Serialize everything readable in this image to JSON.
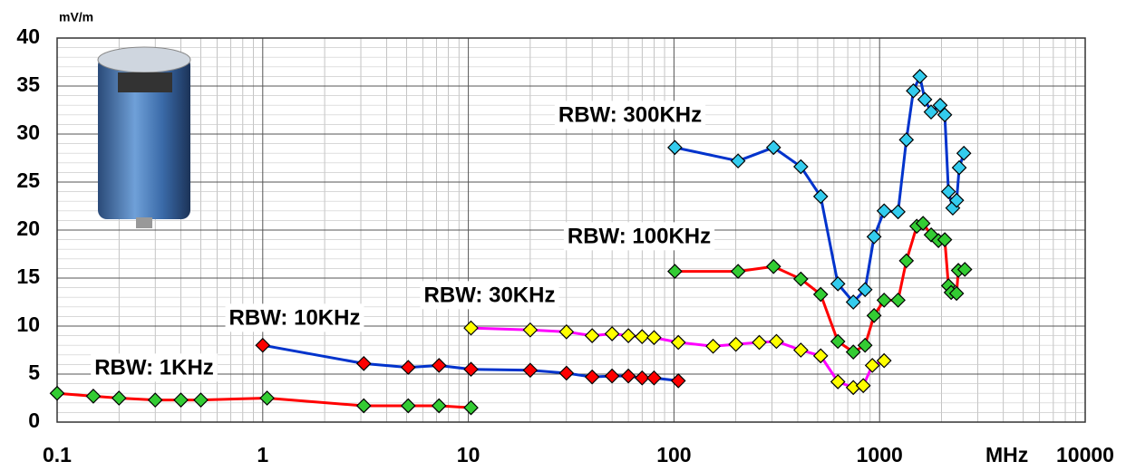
{
  "chart_data": {
    "type": "line",
    "y_unit": "mV/m",
    "x_unit": "MHz",
    "xscale": "log",
    "grid": true,
    "xlim": [
      0.1,
      10000
    ],
    "xticks": [
      0.1,
      1,
      10,
      100,
      1000,
      10000
    ],
    "ylim": [
      0,
      40
    ],
    "yticks": [
      0,
      5,
      10,
      15,
      20,
      25,
      30,
      35,
      40
    ],
    "series": [
      {
        "name": "RBW: 1KHz",
        "color": "#ff0000",
        "marker_color": "#33cc33",
        "x": [
          0.1,
          0.15,
          0.2,
          0.3,
          0.4,
          0.5,
          1.05,
          3.1,
          5.1,
          7.2,
          10.3
        ],
        "values": [
          3.0,
          2.7,
          2.5,
          2.3,
          2.3,
          2.3,
          2.5,
          1.7,
          1.7,
          1.7,
          1.5
        ]
      },
      {
        "name": "RBW: 10KHz",
        "color": "#0033cc",
        "marker_color": "#ff0000",
        "x": [
          1.0,
          3.1,
          5.1,
          7.2,
          10.3,
          20,
          30,
          40,
          50,
          60,
          70,
          80,
          105
        ],
        "values": [
          8.0,
          6.1,
          5.7,
          5.9,
          5.5,
          5.4,
          5.1,
          4.7,
          4.8,
          4.8,
          4.6,
          4.6,
          4.3
        ]
      },
      {
        "name": "RBW: 30KHz",
        "color": "#ff00ff",
        "marker_color": "#ffff00",
        "x": [
          10.3,
          20,
          30,
          40,
          50,
          60,
          70,
          80,
          105,
          155,
          200,
          260,
          315,
          414,
          517,
          627,
          745,
          833,
          922,
          1052
        ],
        "values": [
          9.8,
          9.6,
          9.4,
          9.0,
          9.2,
          9.0,
          8.9,
          8.8,
          8.3,
          7.9,
          8.1,
          8.3,
          8.4,
          7.5,
          6.9,
          4.2,
          3.6,
          3.8,
          5.9,
          6.4
        ]
      },
      {
        "name": "RBW: 100KHz",
        "color": "#ff0000",
        "marker_color": "#33cc33",
        "x": [
          101,
          205,
          305,
          414,
          517,
          627,
          745,
          850,
          940,
          1052,
          1230,
          1350,
          1517,
          1627,
          1782,
          1933,
          2075,
          2163,
          2229,
          2368,
          2416,
          2597
        ],
        "values": [
          15.7,
          15.7,
          16.2,
          14.9,
          13.3,
          8.4,
          7.3,
          8.0,
          11.1,
          12.7,
          12.7,
          16.8,
          20.4,
          20.7,
          19.5,
          18.9,
          19.0,
          14.2,
          13.5,
          13.4,
          15.8,
          15.9
        ]
      },
      {
        "name": "RBW: 300KHz",
        "color": "#0033cc",
        "marker_color": "#33ccee",
        "x": [
          101,
          205,
          305,
          414,
          517,
          627,
          745,
          850,
          940,
          1052,
          1230,
          1350,
          1460,
          1570,
          1660,
          1780,
          1970,
          2075,
          2163,
          2270,
          2370,
          2440,
          2570
        ],
        "values": [
          28.6,
          27.2,
          28.6,
          26.6,
          23.5,
          14.4,
          12.5,
          13.8,
          19.3,
          22.0,
          21.9,
          29.4,
          34.5,
          36.0,
          33.6,
          32.3,
          33.0,
          32.0,
          24.0,
          22.3,
          23.1,
          26.5,
          28.0
        ]
      }
    ]
  }
}
